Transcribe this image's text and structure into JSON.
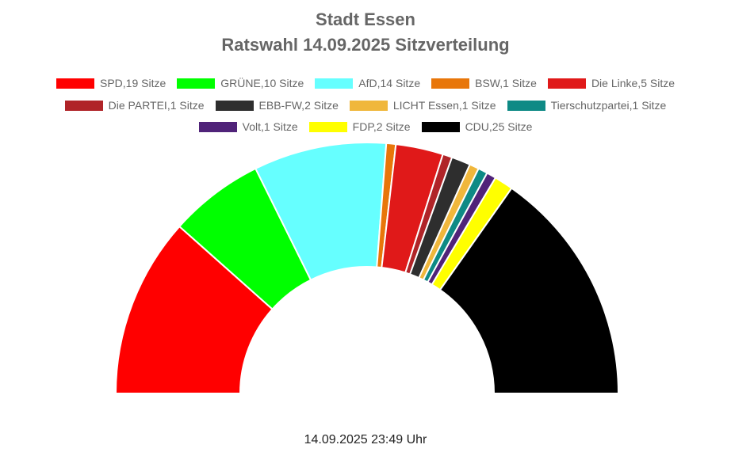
{
  "chart_data": {
    "type": "pie",
    "subtype": "half-donut",
    "title": "Stadt Essen",
    "subtitle": "Ratswahl 14.09.2025 Sitzverteilung",
    "legend_position": "top",
    "series": [
      {
        "name": "SPD",
        "label": "SPD,19 Sitze",
        "value": 19,
        "color": "#ff0000"
      },
      {
        "name": "GRÜNE",
        "label": "GRÜNE,10 Sitze",
        "value": 10,
        "color": "#00ff00"
      },
      {
        "name": "AfD",
        "label": "AfD,14 Sitze",
        "value": 14,
        "color": "#66ffff"
      },
      {
        "name": "BSW",
        "label": "BSW,1 Sitze",
        "value": 1,
        "color": "#e8760a"
      },
      {
        "name": "Die Linke",
        "label": "Die Linke,5 Sitze",
        "value": 5,
        "color": "#e01919"
      },
      {
        "name": "Die PARTEI",
        "label": "Die PARTEI,1 Sitze",
        "value": 1,
        "color": "#b02428"
      },
      {
        "name": "EBB-FW",
        "label": "EBB-FW,2 Sitze",
        "value": 2,
        "color": "#2e2e2e"
      },
      {
        "name": "LICHT Essen",
        "label": "LICHT Essen,1 Sitze",
        "value": 1,
        "color": "#f0b73c"
      },
      {
        "name": "Tierschutzpartei",
        "label": "Tierschutzpartei,1 Sitze",
        "value": 1,
        "color": "#0e8a85"
      },
      {
        "name": "Volt",
        "label": "Volt,1 Sitze",
        "value": 1,
        "color": "#502379"
      },
      {
        "name": "FDP",
        "label": "FDP,2 Sitze",
        "value": 2,
        "color": "#ffff00"
      },
      {
        "name": "CDU",
        "label": "CDU,25 Sitze",
        "value": 25,
        "color": "#000000"
      }
    ]
  },
  "footer": "14.09.2025 23:49 Uhr"
}
